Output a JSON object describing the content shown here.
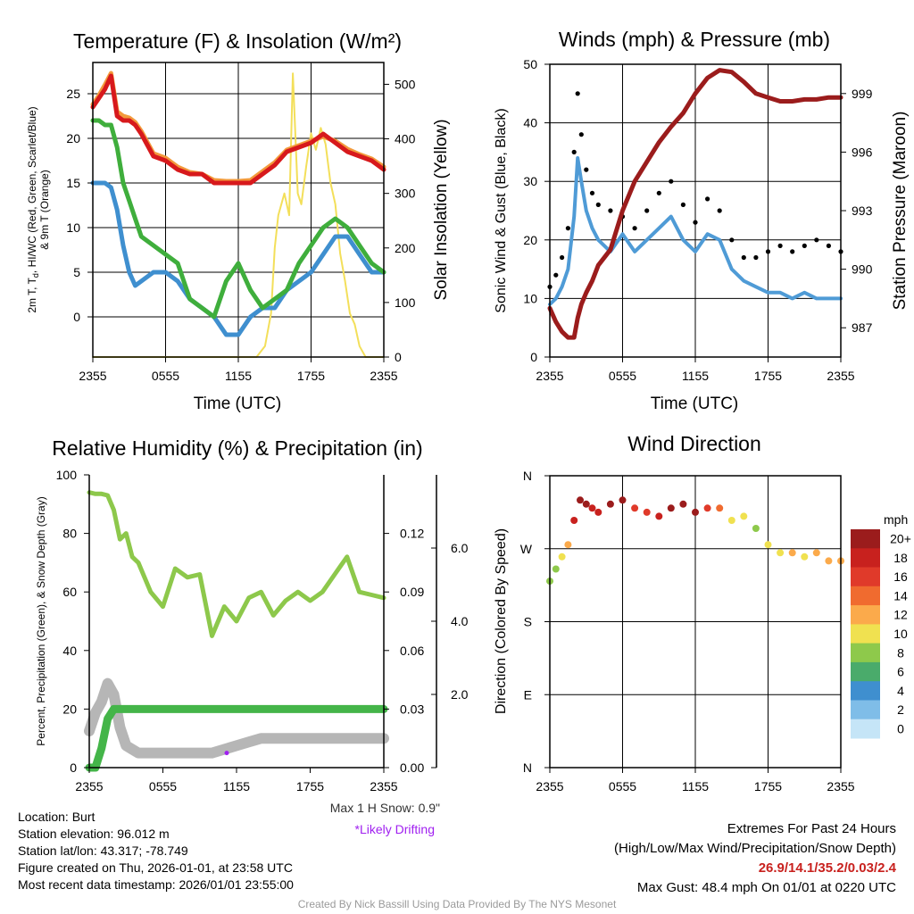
{
  "colors": {
    "temp": "#d7191c",
    "temp9m": "#f39a3c",
    "dewpoint": "#3f8fcf",
    "windchill": "#3fae3c",
    "insolation": "#f3df5a",
    "wind": "#4f9bd6",
    "gust": "#000000",
    "pressure": "#9b1c1c",
    "rh": "#8dc84b",
    "precip": "#44b549",
    "snow": "#b6b6b6",
    "drift": "#a020f0",
    "extremes": "#c8211e"
  },
  "chart_data": [
    {
      "type": "line",
      "title": "Temperature (F) & Insolation (W/m²)",
      "xlabel": "Time (UTC)",
      "ylabel": "2m T, Td, HI/WC (Red, Green, Scarlet/Blue) & 9m T (Orange)",
      "ylabel_line1": "2m T, T",
      "ylabel_sub": "d",
      "ylabel_line1_rest": ", HI/WC (Red, Green, Scarlet/Blue)",
      "ylabel_line2": "& 9m T (Orange)",
      "y2label": "Solar Insolation (Yellow)",
      "xticks": [
        "2355",
        "0555",
        "1155",
        "1755",
        "2355"
      ],
      "ylim": [
        -4.5,
        28.5
      ],
      "yticks": [
        0,
        5,
        10,
        15,
        20,
        25
      ],
      "y2lim": [
        0,
        540
      ],
      "y2ticks": [
        0,
        100,
        200,
        300,
        400,
        500
      ],
      "x": [
        0,
        0.5,
        1,
        1.5,
        2,
        2.5,
        3,
        3.5,
        4,
        5,
        6,
        7,
        8,
        9,
        10,
        11,
        12,
        13,
        14,
        15,
        16,
        17,
        18,
        19,
        20,
        21,
        22,
        23,
        24
      ],
      "series": [
        {
          "name": "2m T",
          "color": "temp",
          "values": [
            23.5,
            24.5,
            25.5,
            27,
            22.5,
            22,
            22,
            21.5,
            20.5,
            18,
            17.5,
            16.5,
            16,
            16,
            15,
            15,
            15,
            15,
            16,
            17,
            18.5,
            19,
            19.5,
            20.5,
            19.5,
            18.5,
            18,
            17.5,
            16.5
          ]
        },
        {
          "name": "9m T",
          "color": "temp9m",
          "values": [
            23.8,
            24.8,
            26,
            27.3,
            23,
            22.5,
            22.3,
            21.8,
            20.8,
            18.3,
            17.8,
            16.8,
            16.2,
            16,
            15.3,
            15.2,
            15.2,
            15.3,
            16.3,
            17.3,
            18.7,
            19.2,
            19.7,
            20.2,
            19.7,
            18.8,
            18.2,
            17.7,
            16.8
          ]
        },
        {
          "name": "Dewpoint",
          "color": "windchill",
          "values": [
            22,
            22,
            21.5,
            21.5,
            19,
            15,
            13,
            11,
            9,
            8,
            7,
            6,
            2,
            1,
            0,
            4,
            6,
            3,
            1,
            2,
            3,
            6,
            8,
            10,
            11,
            10,
            8,
            6,
            5
          ]
        },
        {
          "name": "Wind Chill",
          "color": "dewpoint",
          "values": [
            15,
            15,
            15,
            14.5,
            12,
            8,
            5,
            3.5,
            4,
            5,
            5,
            4,
            2,
            1,
            0,
            -2,
            -2,
            0,
            1,
            1,
            3,
            4,
            5,
            7,
            9,
            9,
            7,
            5,
            5
          ]
        }
      ],
      "insolation_x": [
        0,
        13.5,
        14.2,
        14.7,
        15,
        15.3,
        15.8,
        16.2,
        16.5,
        16.9,
        17.2,
        17.6,
        18,
        18.4,
        18.8,
        19.2,
        19.6,
        20,
        20.4,
        20.8,
        21.2,
        21.6,
        22,
        22.5,
        24
      ],
      "insolation_values": [
        0,
        0,
        20,
        80,
        200,
        260,
        300,
        260,
        520,
        300,
        280,
        350,
        410,
        380,
        420,
        390,
        320,
        280,
        190,
        140,
        80,
        60,
        20,
        0,
        0
      ]
    },
    {
      "type": "line",
      "title": "Winds (mph) & Pressure (mb)",
      "xlabel": "Time (UTC)",
      "ylabel": "Sonic Wind & Gust (Blue, Black)",
      "y2label": "Station Pressure (Maroon)",
      "xticks": [
        "2355",
        "0555",
        "1155",
        "1755",
        "2355"
      ],
      "ylim": [
        0,
        50
      ],
      "yticks": [
        0,
        10,
        20,
        30,
        40,
        50
      ],
      "y2lim": [
        985.5,
        1000.5
      ],
      "y2ticks": [
        987,
        990,
        993,
        996,
        999
      ],
      "x": [
        0,
        0.5,
        1,
        1.5,
        2,
        2.3,
        2.6,
        3,
        3.5,
        4,
        5,
        6,
        7,
        8,
        9,
        10,
        11,
        12,
        13,
        14,
        15,
        16,
        17,
        18,
        19,
        20,
        21,
        22,
        23,
        24
      ],
      "series": [
        {
          "name": "Sonic Wind",
          "color": "wind",
          "values": [
            9,
            10,
            12,
            15,
            24,
            34,
            30,
            25,
            22,
            20,
            18,
            21,
            18,
            20,
            22,
            24,
            20,
            18,
            21,
            20,
            15,
            13,
            12,
            11,
            11,
            10,
            11,
            10,
            10,
            10
          ]
        },
        {
          "name": "Gust",
          "color": "gust",
          "values": [
            12,
            14,
            17,
            22,
            35,
            45,
            38,
            32,
            28,
            26,
            25,
            24,
            22,
            25,
            28,
            30,
            26,
            23,
            27,
            25,
            20,
            17,
            17,
            18,
            19,
            18,
            19,
            20,
            19,
            18
          ]
        },
        {
          "name": "Station Pressure",
          "color": "pressure",
          "axis": "y2",
          "values": [
            988,
            987.3,
            986.8,
            986.5,
            986.5,
            987.5,
            988.2,
            988.8,
            989.4,
            990.2,
            991,
            993,
            994.5,
            995.5,
            996.5,
            997.3,
            998,
            999,
            999.8,
            1000.2,
            1000.1,
            999.6,
            999,
            998.8,
            998.6,
            998.6,
            998.7,
            998.7,
            998.8,
            998.8
          ]
        }
      ]
    },
    {
      "type": "line",
      "title": "Relative Humidity (%) & Precipitation (in)",
      "xlabel": "",
      "ylabel": "Percent, Precipitation (Green), & Snow Depth (Gray)",
      "xticks": [
        "2355",
        "0555",
        "1155",
        "1755",
        "2355"
      ],
      "ylim": [
        0,
        100
      ],
      "yticks": [
        0,
        20,
        40,
        60,
        80,
        100
      ],
      "precip_ticks": [
        "0.00",
        "0.03",
        "0.06",
        "0.09",
        "0.12"
      ],
      "precip_lim": [
        0,
        0.15
      ],
      "snow_ticks": [
        "2.0",
        "4.0",
        "6.0"
      ],
      "snow_lim": [
        0,
        8.0
      ],
      "x": [
        0,
        0.5,
        1,
        1.5,
        2,
        2.5,
        3,
        3.5,
        4,
        5,
        6,
        7,
        8,
        9,
        10,
        11,
        12,
        13,
        14,
        15,
        16,
        17,
        18,
        19,
        20,
        21,
        22,
        23,
        24
      ],
      "series": [
        {
          "name": "Relative Humidity",
          "color": "rh",
          "values": [
            94,
            93.5,
            93.5,
            93,
            88,
            78,
            80,
            72,
            70,
            60,
            55,
            68,
            65,
            66,
            45,
            55,
            50,
            58,
            60,
            52,
            57,
            60,
            57,
            60,
            66,
            72,
            60,
            59,
            58
          ]
        },
        {
          "name": "Precipitation",
          "color": "precip",
          "values": [
            0,
            0,
            0.01,
            0.025,
            0.03,
            0.03,
            0.03,
            0.03,
            0.03,
            0.03,
            0.03,
            0.03,
            0.03,
            0.03,
            0.03,
            0.03,
            0.03,
            0.03,
            0.03,
            0.03,
            0.03,
            0.03,
            0.03,
            0.03,
            0.03,
            0.03,
            0.03,
            0.03,
            0.03
          ]
        },
        {
          "name": "Snow Depth",
          "color": "snow",
          "values": [
            1.0,
            1.5,
            1.8,
            2.3,
            2.0,
            1.1,
            0.6,
            0.5,
            0.4,
            0.4,
            0.4,
            0.4,
            0.4,
            0.4,
            0.4,
            0.5,
            0.6,
            0.7,
            0.8,
            0.8,
            0.8,
            0.8,
            0.8,
            0.8,
            0.8,
            0.8,
            0.8,
            0.8,
            0.8
          ]
        }
      ],
      "snow_note": "Max 1 H Snow: 0.9\"",
      "drift_note": "*Likely Drifting"
    },
    {
      "type": "scatter",
      "title": "Wind Direction",
      "ylabel": "Direction (Colored By Speed)",
      "xticks": [
        "2355",
        "0555",
        "1155",
        "1755",
        "2355"
      ],
      "yticks": [
        "N",
        "E",
        "S",
        "W",
        "N"
      ],
      "ylim": [
        0,
        360
      ],
      "x": [
        0,
        0.5,
        1,
        1.5,
        2,
        2.5,
        3,
        3.5,
        4,
        5,
        6,
        7,
        8,
        9,
        10,
        11,
        12,
        13,
        14,
        15,
        16,
        17,
        18,
        19,
        20,
        21,
        22,
        23,
        24
      ],
      "direction": [
        230,
        245,
        260,
        275,
        305,
        330,
        325,
        320,
        315,
        325,
        330,
        320,
        315,
        310,
        320,
        325,
        315,
        320,
        320,
        305,
        310,
        295,
        275,
        265,
        265,
        260,
        265,
        255,
        255
      ],
      "speed": [
        7,
        8,
        9,
        12,
        18,
        22,
        20,
        18,
        17,
        21,
        20,
        16,
        15,
        17,
        22,
        21,
        20,
        16,
        14,
        10,
        9,
        8,
        9,
        10,
        11,
        10,
        11,
        11,
        11
      ],
      "colorbar_title": "mph",
      "colorbar_labels": [
        "20+",
        "18",
        "16",
        "14",
        "12",
        "10",
        "8",
        "6",
        "4",
        "2",
        "0"
      ],
      "colorbar_colors": [
        "#9b1c1c",
        "#c8211e",
        "#e03a2a",
        "#f06b2f",
        "#fbaa4b",
        "#f0e150",
        "#8ec94b",
        "#4aab6b",
        "#3f8fcf",
        "#7fbde8",
        "#c5e5f7"
      ]
    }
  ],
  "info": {
    "location": "Location: Burt",
    "elevation": "Station elevation: 96.012 m",
    "latlon": "Station lat/lon: 43.317; -78.749",
    "created": "Figure created on Thu, 2026-01-01, at 23:58 UTC",
    "recent": "Most recent data timestamp: 2026/01/01 23:55:00"
  },
  "extremes": {
    "heading": "Extremes For Past 24 Hours",
    "subheading": "(High/Low/Max Wind/Precipitation/Snow Depth)",
    "values": "26.9/14.1/35.2/0.03/2.4",
    "max_gust": "Max Gust: 48.4 mph On 01/01 at 0220 UTC"
  },
  "credit": "Created By Nick Bassill Using Data Provided By The NYS Mesonet"
}
